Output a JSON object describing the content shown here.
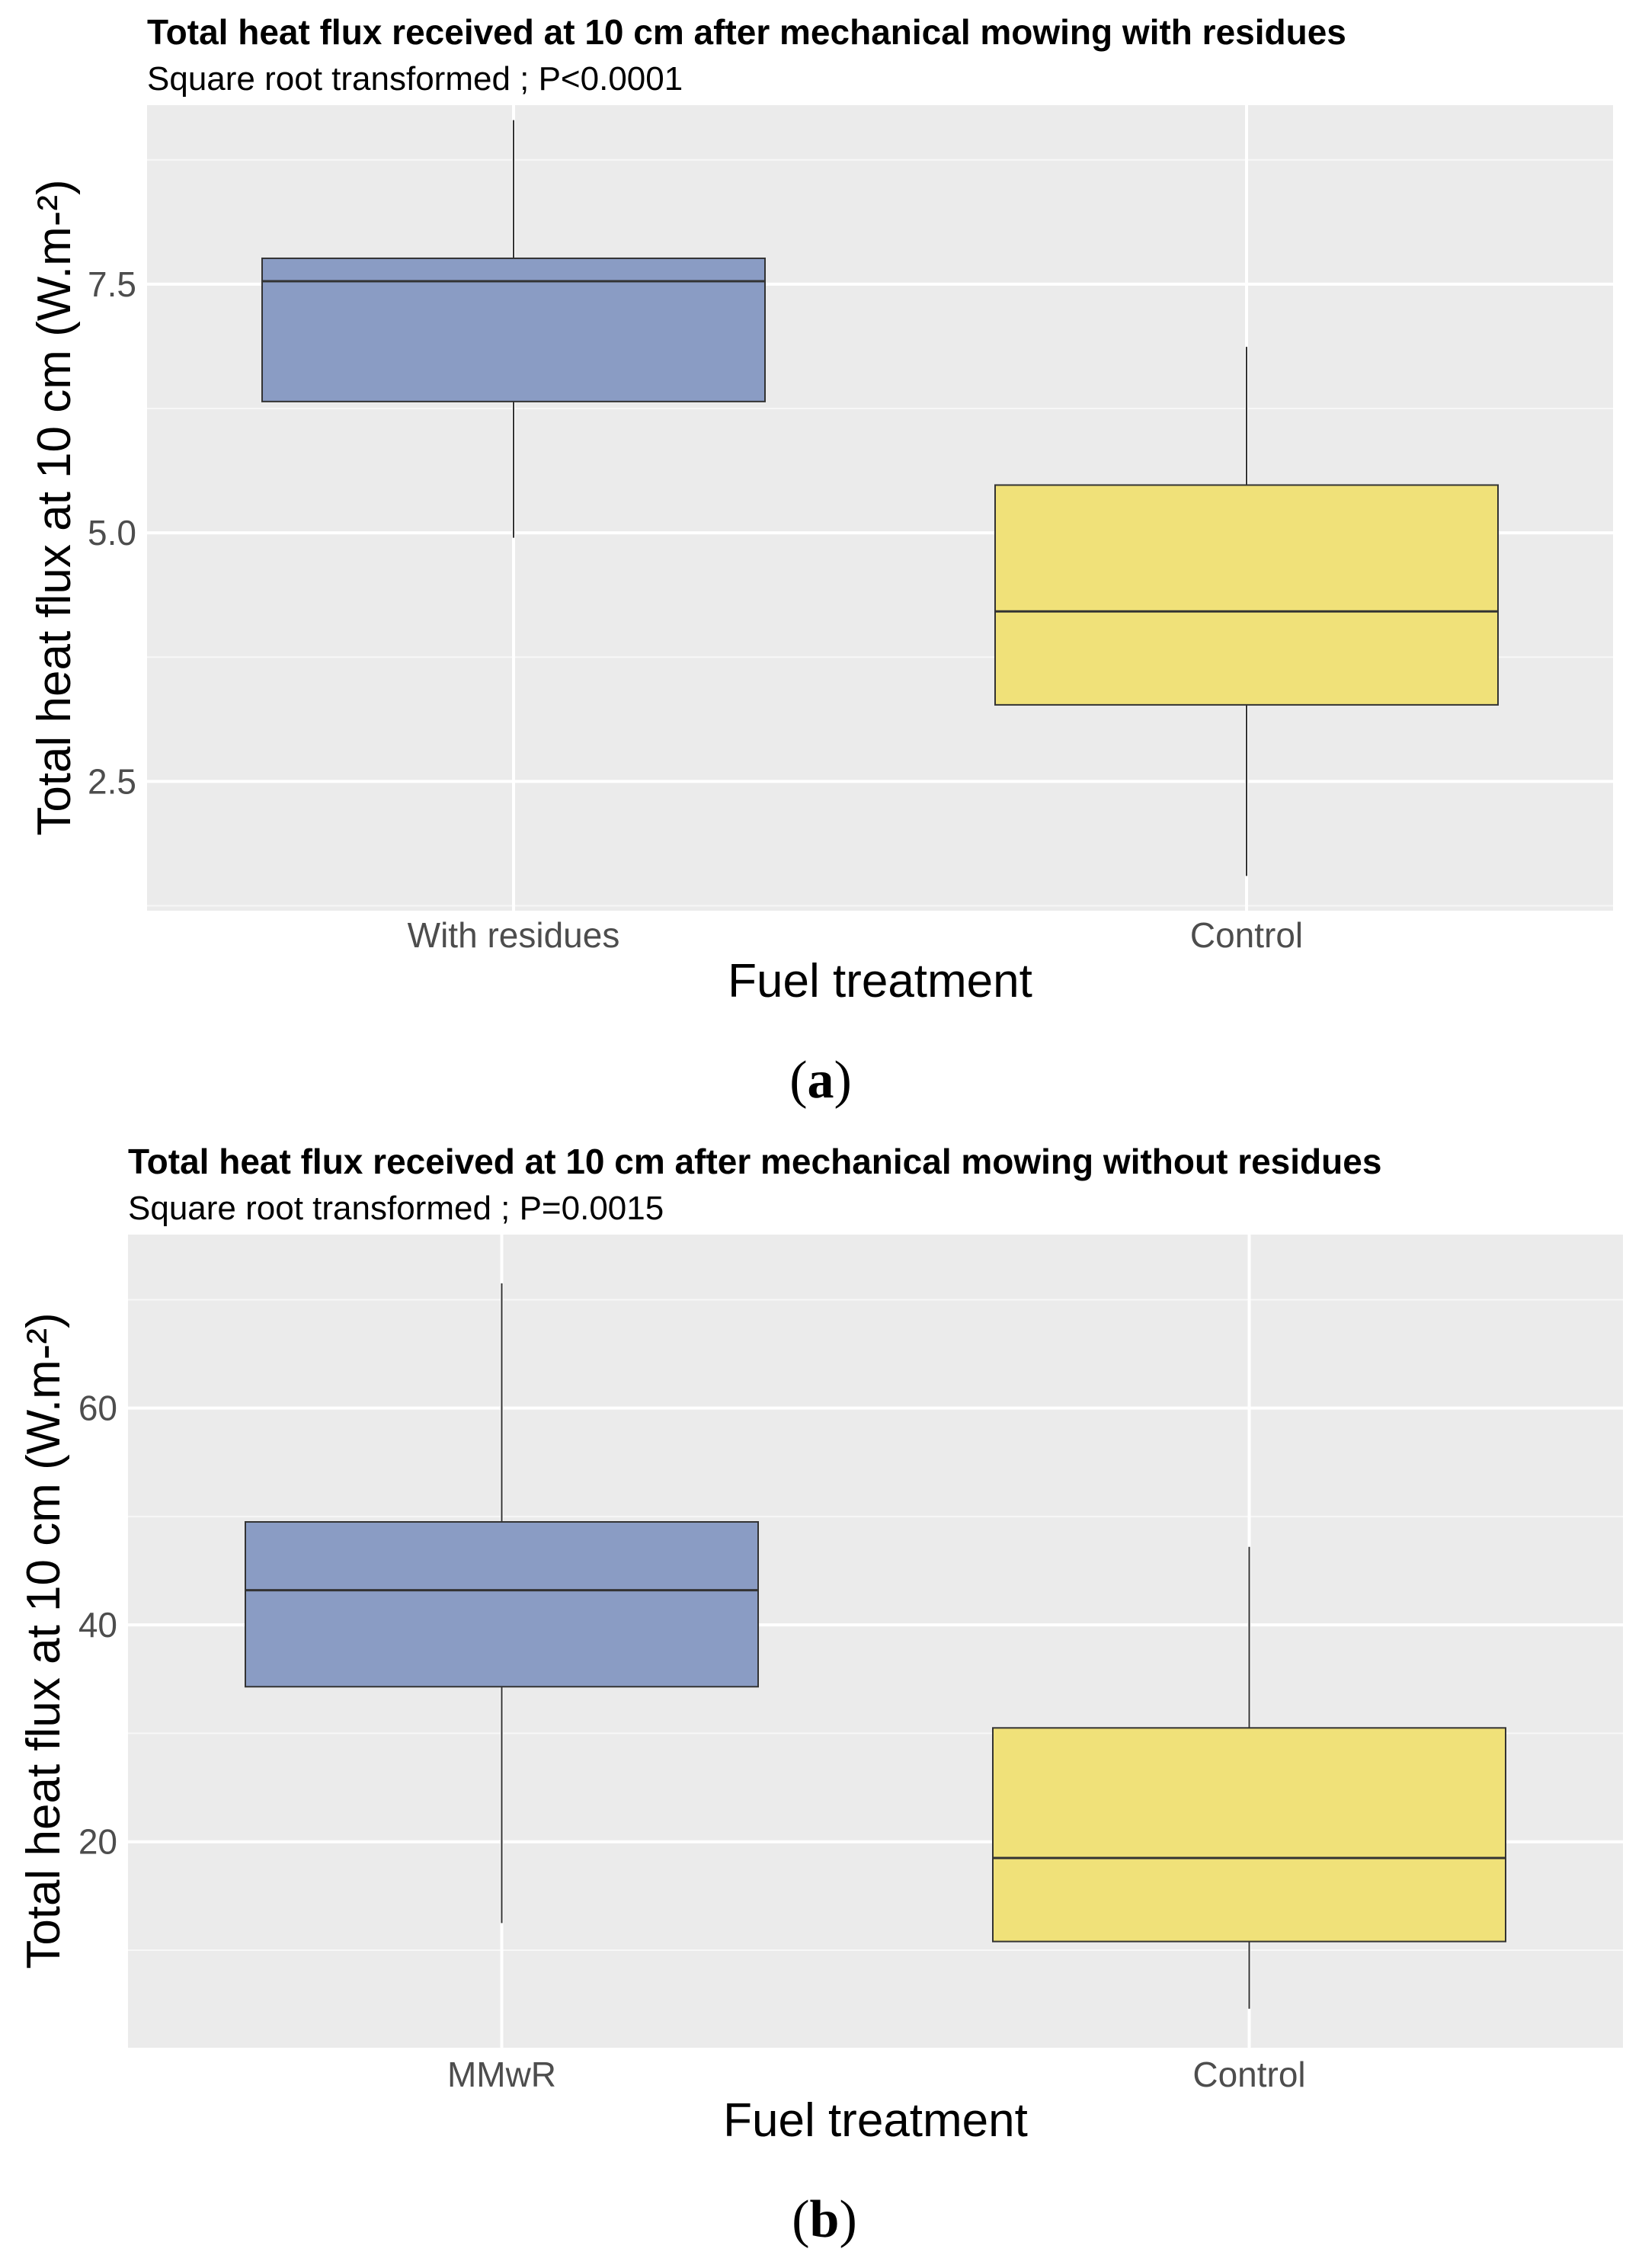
{
  "chart_data": [
    {
      "type": "boxplot",
      "panel_label": "(a)",
      "panel_letter": "a",
      "title": "Total heat flux received at 10 cm after mechanical mowing with residues",
      "subtitle": "Square root transformed ; P<0.0001",
      "xlabel": "Fuel treatment",
      "ylabel": "Total heat flux at 10 cm (W.m-²)",
      "ylim": [
        1.2,
        9.3
      ],
      "yticks": [
        2.5,
        5.0,
        7.5
      ],
      "ytick_labels": [
        "2.5",
        "5.0",
        "7.5"
      ],
      "grid": true,
      "categories": [
        "With residues",
        "Control"
      ],
      "boxes": [
        {
          "category": "With residues",
          "min": 4.95,
          "q1": 6.32,
          "median": 7.53,
          "q3": 7.76,
          "max": 9.15,
          "color": "#8a9cc4"
        },
        {
          "category": "Control",
          "min": 1.55,
          "q1": 3.27,
          "median": 4.21,
          "q3": 5.48,
          "max": 6.87,
          "color": "#f0e179"
        }
      ]
    },
    {
      "type": "boxplot",
      "panel_label": "(b)",
      "panel_letter": "b",
      "title": "Total heat flux received at 10 cm after mechanical mowing without residues",
      "subtitle": "Square root transformed ; P=0.0015",
      "xlabel": "Fuel treatment",
      "ylabel": "Total heat flux at 10 cm (W.m-²)",
      "ylim": [
        1,
        76
      ],
      "yticks": [
        20,
        40,
        60
      ],
      "ytick_labels": [
        "20",
        "40",
        "60"
      ],
      "grid": true,
      "categories": [
        "MMwR",
        "Control"
      ],
      "boxes": [
        {
          "category": "MMwR",
          "min": 12.5,
          "q1": 34.3,
          "median": 43.2,
          "q3": 49.5,
          "max": 71.5,
          "color": "#8a9cc4"
        },
        {
          "category": "Control",
          "min": 4.6,
          "q1": 10.8,
          "median": 18.5,
          "q3": 30.5,
          "max": 47.2,
          "color": "#f0e179"
        }
      ]
    }
  ]
}
